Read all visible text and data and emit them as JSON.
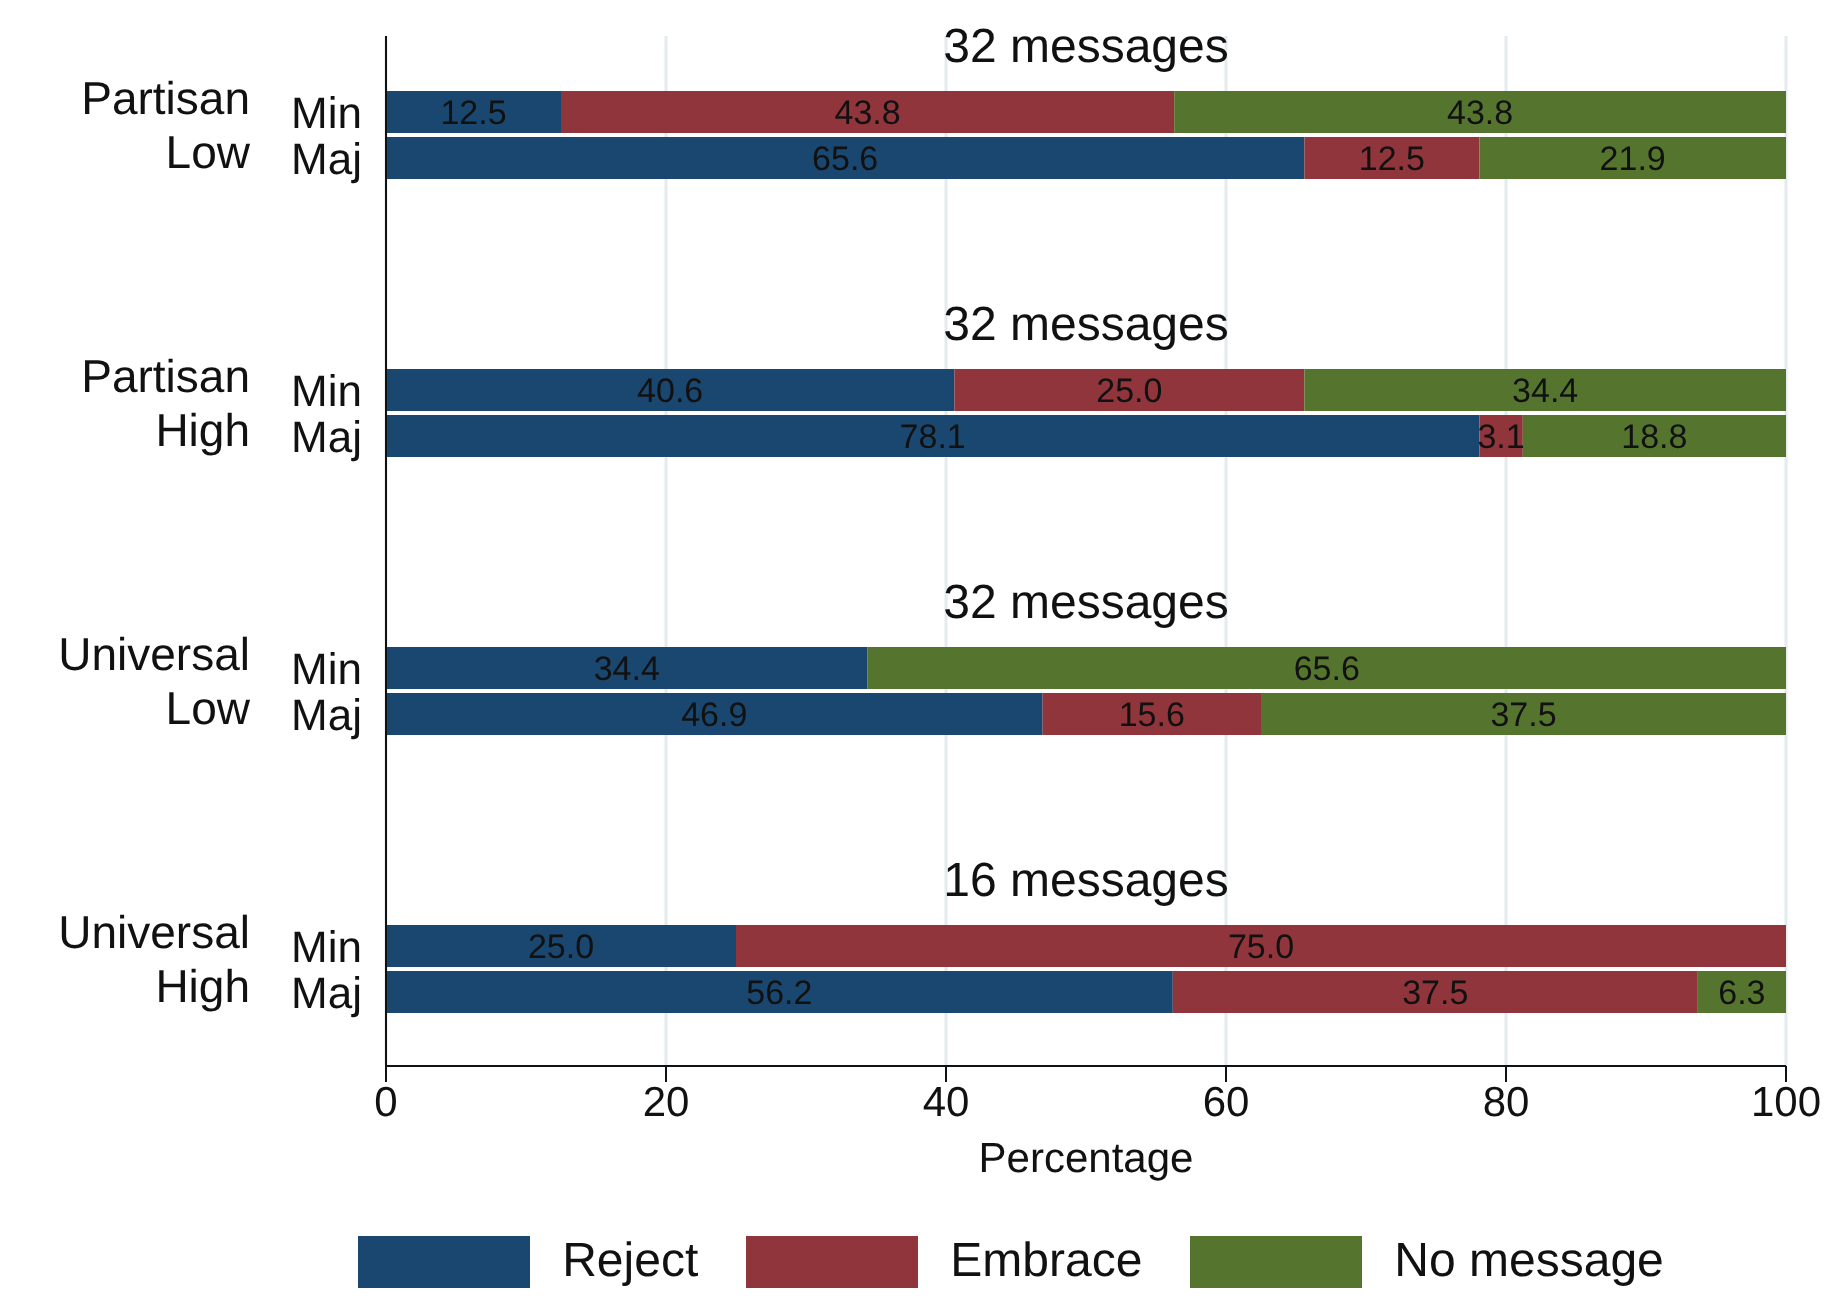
{
  "chart_data": [
    {
      "type": "bar",
      "orientation": "horizontal",
      "stacked": true,
      "title": "32 messages",
      "ylabel": "Partisan Low",
      "categories": [
        "Min",
        "Maj"
      ],
      "series": [
        {
          "color": "#1a476f",
          "values": [
            12.5,
            65.6
          ],
          "value_labels": [
            "12.5",
            "65.6"
          ]
        },
        {
          "color": "#90353b",
          "values": [
            43.8,
            12.5
          ],
          "value_labels": [
            "43.8",
            "12.5"
          ]
        },
        {
          "color": "#55752f",
          "values": [
            43.8,
            21.9
          ],
          "value_labels": [
            "43.8",
            "21.9"
          ]
        }
      ],
      "xlim": [
        0,
        100
      ],
      "xticks": [
        0,
        20,
        40,
        60,
        80,
        100
      ],
      "grid": "x",
      "tick_labels": "y"
    },
    {
      "type": "bar",
      "orientation": "horizontal",
      "stacked": true,
      "title": "32 messages",
      "ylabel": "Partisan High",
      "categories": [
        "Min",
        "Maj"
      ],
      "series": [
        {
          "color": "#1a476f",
          "values": [
            40.6,
            78.1
          ],
          "value_labels": [
            "40.6",
            "78.1"
          ]
        },
        {
          "color": "#90353b",
          "values": [
            25.0,
            3.1
          ],
          "value_labels": [
            "25.0",
            "3.1"
          ]
        },
        {
          "color": "#55752f",
          "values": [
            34.4,
            18.8
          ],
          "value_labels": [
            "34.4",
            "18.8"
          ]
        }
      ],
      "xlim": [
        0,
        100
      ],
      "xticks": [
        0,
        20,
        40,
        60,
        80,
        100
      ],
      "grid": "x",
      "tick_labels": "y"
    },
    {
      "type": "bar",
      "orientation": "horizontal",
      "stacked": true,
      "title": "32 messages",
      "ylabel": "Universal Low",
      "categories": [
        "Min",
        "Maj"
      ],
      "series": [
        {
          "color": "#1a476f",
          "values": [
            34.4,
            46.9
          ],
          "value_labels": [
            "34.4",
            "46.9"
          ]
        },
        {
          "color": "#90353b",
          "values": [
            null,
            15.6
          ],
          "value_labels": [
            null,
            "15.6"
          ]
        },
        {
          "color": "#55752f",
          "values": [
            65.6,
            37.5
          ],
          "value_labels": [
            "65.6",
            "37.5"
          ]
        }
      ],
      "xlim": [
        0,
        100
      ],
      "xticks": [
        0,
        20,
        40,
        60,
        80,
        100
      ],
      "grid": "x",
      "tick_labels": "y"
    },
    {
      "type": "bar",
      "orientation": "horizontal",
      "stacked": true,
      "title": "16 messages",
      "ylabel": "Universal High",
      "categories": [
        "Min",
        "Maj"
      ],
      "series": [
        {
          "name": "Reject",
          "color": "#1a476f",
          "values": [
            25.0,
            56.2
          ],
          "value_labels": [
            "25.0",
            "56.2"
          ]
        },
        {
          "name": "Embrace",
          "color": "#90353b",
          "values": [
            75.0,
            37.5
          ],
          "value_labels": [
            "75.0",
            "37.5"
          ]
        },
        {
          "name": "No message",
          "color": "#55752f",
          "values": [
            null,
            6.3
          ],
          "value_labels": [
            null,
            "6.3"
          ]
        }
      ],
      "xlabel": "Percentage",
      "xlim": [
        0,
        100
      ],
      "xticks": [
        0,
        20,
        40,
        60,
        80,
        100
      ],
      "grid": "x",
      "legend": "bottom"
    }
  ]
}
